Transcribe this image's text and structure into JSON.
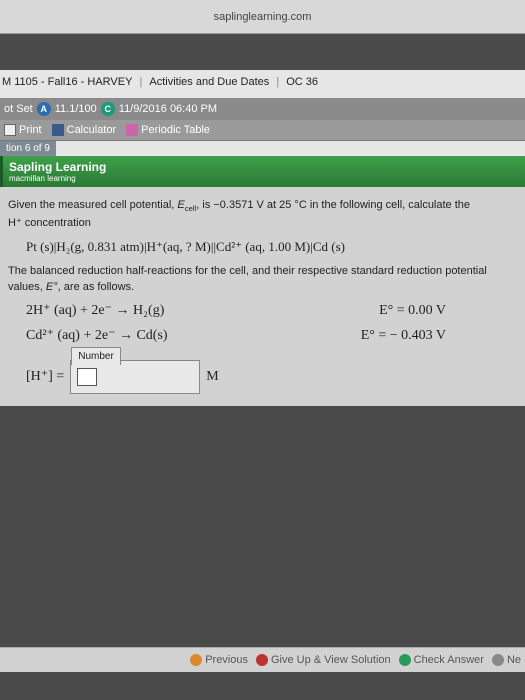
{
  "browser": {
    "url": "saplinglearning.com"
  },
  "breadcrumb": {
    "course": "M 1105 - Fall16 - HARVEY",
    "activities": "Activities and Due Dates",
    "item": "OC 36"
  },
  "topbar": {
    "set_label": "ot Set",
    "score": "11.1/100",
    "due": "11/9/2016 06:40 PM"
  },
  "toolbar": {
    "print": "Print",
    "calculator": "Calculator",
    "periodic": "Periodic Table"
  },
  "pager": {
    "text": "tion 6 of 9"
  },
  "brand": {
    "name": "Sapling Learning",
    "sub": "macmillan learning"
  },
  "problem": {
    "p1a": "Given the measured cell potential, ",
    "p1b": "E",
    "p1c": "cell",
    "p1d": ", is −0.3571 V at 25 °C in the following cell, calculate the",
    "p2": "H⁺ concentration",
    "cell_notation": "Pt (s)|H₂(g, 0.831 atm)|H⁺(aq, ? M)||Cd²⁺ (aq, 1.00 M)|Cd (s)",
    "p3a": "The balanced reduction half-reactions for the cell, and their respective standard reduction potential values, ",
    "p3b": "E°",
    "p3c": ", are as follows.",
    "rx1_left": "2H⁺ (aq) + 2e⁻   →   H₂(g)",
    "rx1_right": "E° = 0.00  V",
    "rx2_left": "Cd²⁺ (aq) + 2e⁻   →   Cd(s)",
    "rx2_right": "E° = − 0.403  V",
    "answer_lhs": "[H⁺] =",
    "answer_unit": "M",
    "number_label": "Number"
  },
  "footer": {
    "previous": "Previous",
    "giveup": "Give Up & View Solution",
    "check": "Check Answer",
    "next": "Ne"
  }
}
